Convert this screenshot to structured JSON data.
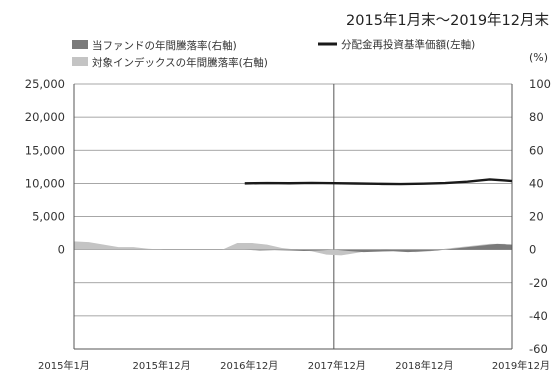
{
  "chart_data": {
    "type": "line",
    "title": "2015年1月末～2019年12月末",
    "x_tick_labels": [
      "2015年1月",
      "2015年12月",
      "2016年12月",
      "2017年12月",
      "2018年12月",
      "2019年12月"
    ],
    "x_range": [
      "2015-01",
      "2019-12"
    ],
    "left_axis": {
      "range": [
        -15000,
        25000
      ],
      "tick_values": [
        25000,
        20000,
        15000,
        10000,
        5000,
        0
      ],
      "tick_labels": [
        "25,000",
        "20,000",
        "15,000",
        "10,000",
        "5,000",
        "0"
      ]
    },
    "right_axis": {
      "unit": "(%)",
      "range": [
        -60,
        100
      ],
      "tick_values": [
        100,
        80,
        60,
        40,
        20,
        0,
        -20,
        -40,
        -60
      ],
      "tick_labels": [
        "100",
        "80",
        "60",
        "40",
        "20",
        "0",
        "-20",
        "-40",
        "-60"
      ]
    },
    "grid": true,
    "legend": {
      "placement": "top",
      "entries": [
        {
          "key": "fund",
          "label": "当ファンドの年間騰落率(右軸)",
          "symbol": "area",
          "color": "#7a7a7a"
        },
        {
          "key": "index",
          "label": "対象インデックスの年間騰落率(右軸)",
          "symbol": "area",
          "color": "#c4c4c4"
        },
        {
          "key": "nav",
          "label": "分配金再投資基準価額(左軸)",
          "symbol": "line",
          "color": "#1a1a1a"
        }
      ]
    },
    "series": [
      {
        "key": "index",
        "label": "対象インデックスの年間騰落率(右軸)",
        "axis": "right",
        "type": "area",
        "color": "#c4c4c4",
        "points": [
          [
            "2015-01",
            5
          ],
          [
            "2015-03",
            4.5
          ],
          [
            "2015-05",
            3
          ],
          [
            "2015-07",
            1.5
          ],
          [
            "2015-09",
            1.5
          ],
          [
            "2015-11",
            0.5
          ],
          [
            "2016-01",
            0
          ],
          [
            "2016-03",
            0
          ],
          [
            "2016-06",
            0
          ],
          [
            "2016-09",
            0
          ],
          [
            "2016-10",
            2
          ],
          [
            "2016-11",
            4
          ],
          [
            "2017-01",
            4
          ],
          [
            "2017-03",
            3
          ],
          [
            "2017-05",
            1
          ],
          [
            "2017-07",
            0
          ],
          [
            "2017-09",
            -1
          ],
          [
            "2017-11",
            -3
          ],
          [
            "2018-01",
            -3.5
          ],
          [
            "2018-03",
            -2
          ],
          [
            "2018-05",
            -0.5
          ],
          [
            "2018-07",
            0
          ],
          [
            "2018-09",
            -0.5
          ],
          [
            "2018-11",
            -1.5
          ],
          [
            "2019-01",
            -1
          ],
          [
            "2019-03",
            0.5
          ],
          [
            "2019-05",
            1.5
          ],
          [
            "2019-07",
            2.5
          ],
          [
            "2019-09",
            3.5
          ],
          [
            "2019-11",
            3.5
          ],
          [
            "2019-12",
            2
          ]
        ]
      },
      {
        "key": "fund",
        "label": "当ファンドの年間騰落率(右軸)",
        "axis": "right",
        "type": "area",
        "color": "#7a7a7a",
        "points": [
          [
            "2016-12",
            0
          ],
          [
            "2017-02",
            -0.5
          ],
          [
            "2017-04",
            -0.3
          ],
          [
            "2017-06",
            -0.5
          ],
          [
            "2017-08",
            -0.8
          ],
          [
            "2017-10",
            -0.5
          ],
          [
            "2017-12",
            0
          ],
          [
            "2018-02",
            -0.8
          ],
          [
            "2018-04",
            -1.5
          ],
          [
            "2018-06",
            -1.2
          ],
          [
            "2018-08",
            -1
          ],
          [
            "2018-10",
            -1.5
          ],
          [
            "2018-12",
            -1
          ],
          [
            "2019-02",
            -0.5
          ],
          [
            "2019-04",
            0.5
          ],
          [
            "2019-06",
            1.5
          ],
          [
            "2019-08",
            2.5
          ],
          [
            "2019-10",
            3.5
          ],
          [
            "2019-12",
            3
          ]
        ]
      },
      {
        "key": "nav",
        "label": "分配金再投資基準価額(左軸)",
        "axis": "left",
        "type": "line",
        "color": "#1a1a1a",
        "points": [
          [
            "2016-12",
            10000
          ],
          [
            "2017-03",
            10050
          ],
          [
            "2017-06",
            10020
          ],
          [
            "2017-09",
            10070
          ],
          [
            "2017-12",
            10030
          ],
          [
            "2018-03",
            9980
          ],
          [
            "2018-06",
            9930
          ],
          [
            "2018-09",
            9900
          ],
          [
            "2018-12",
            9950
          ],
          [
            "2019-03",
            10050
          ],
          [
            "2019-06",
            10250
          ],
          [
            "2019-09",
            10600
          ],
          [
            "2019-11",
            10450
          ],
          [
            "2019-12",
            10350
          ]
        ]
      }
    ]
  }
}
